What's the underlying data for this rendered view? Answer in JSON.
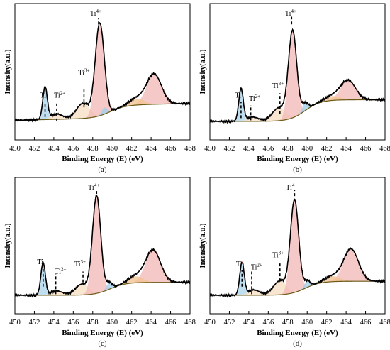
{
  "colors": {
    "measured": "#000000",
    "baseline": "#6b5a16",
    "envelope": "#d33b2c",
    "fill_ti0": "#a9d4ec",
    "fill_ti2": "#f7dfc1",
    "fill_ti3": "#f5dec0",
    "fill_ti4": "#f3b7b7",
    "fill_sat_ti0": "#9ccdea",
    "fill_sat_ti4": "#f1c28f",
    "marker": "#000000"
  },
  "chart_data": [
    {
      "type": "area",
      "panel_label": "(a)",
      "xlabel": "Binding Energy (E) (eV)",
      "ylabel": "Intensity(a.u.)",
      "xlim": [
        450,
        468
      ],
      "ylim": [
        0,
        1.02
      ],
      "x_ticks": [
        450,
        452,
        454,
        456,
        458,
        460,
        462,
        464,
        466,
        468
      ],
      "x_tick_labels": [
        "450",
        "452",
        "454",
        "456",
        "458",
        "460",
        "462",
        "464",
        "466",
        "468"
      ],
      "grid": false,
      "background": {
        "start": 0.03,
        "step_center": 459.8,
        "step_height": 0.12,
        "slope": 0.002
      },
      "peaks": [
        {
          "name": "Ti",
          "center": 453.1,
          "height": 0.3,
          "fwhm": 0.55,
          "fill": "fill_ti0"
        },
        {
          "name": "Ti2+",
          "center": 454.3,
          "height": 0.05,
          "fwhm": 1.4,
          "fill": "fill_ti2"
        },
        {
          "name": "Ti3+",
          "center": 457.0,
          "height": 0.14,
          "fwhm": 1.6,
          "fill": "fill_ti3"
        },
        {
          "name": "Ti4+",
          "center": 458.7,
          "height": 0.84,
          "fwhm": 1.05,
          "fill": "fill_ti4"
        },
        {
          "name": "Ti sat",
          "center": 459.2,
          "height": 0.06,
          "fwhm": 0.7,
          "fill": "fill_sat_ti0"
        },
        {
          "name": "Ti4+ 2p1/2",
          "center": 464.3,
          "height": 0.28,
          "fwhm": 1.8,
          "fill": "fill_ti4"
        },
        {
          "name": "Ti3+ 2p1/2",
          "center": 462.5,
          "height": 0.06,
          "fwhm": 1.8,
          "fill": "fill_sat_ti4"
        }
      ],
      "markers": [
        {
          "label": "Ti",
          "sup": "",
          "x": 453.1,
          "y_bottom": 0.06,
          "y_top": 0.2,
          "label_y": 0.24,
          "label_x": 452.9
        },
        {
          "label": "Ti",
          "sup": "2+",
          "x": 454.3,
          "y_bottom": 0.02,
          "y_top": 0.19,
          "label_y": 0.24,
          "label_x": 454.6
        },
        {
          "label": "Ti",
          "sup": "3+",
          "x": 457.1,
          "y_bottom": 0.15,
          "y_top": 0.33,
          "label_y": 0.45,
          "label_x": 457.1
        },
        {
          "label": "Ti",
          "sup": "4+",
          "x": 458.6,
          "y_bottom": 0.92,
          "y_top": 0.98,
          "label_y": 1.0,
          "label_x": 458.3
        }
      ]
    },
    {
      "type": "area",
      "panel_label": "(b)",
      "xlabel": "Binding Energy (E) (eV)",
      "ylabel": "Intensity(a.u.)",
      "xlim": [
        450,
        468
      ],
      "ylim": [
        0,
        1.02
      ],
      "x_ticks": [
        450,
        452,
        454,
        456,
        458,
        460,
        462,
        464,
        466,
        468
      ],
      "x_tick_labels": [
        "450",
        "452",
        "454",
        "456",
        "458",
        "460",
        "462",
        "464",
        "466",
        "468"
      ],
      "grid": false,
      "background": {
        "start": 0.02,
        "step_center": 459.8,
        "step_height": 0.2,
        "slope": 0.0
      },
      "peaks": [
        {
          "name": "Ti",
          "center": 453.2,
          "height": 0.3,
          "fwhm": 0.55,
          "fill": "fill_ti0"
        },
        {
          "name": "Ti2+",
          "center": 454.4,
          "height": 0.04,
          "fwhm": 1.4,
          "fill": "fill_ti2"
        },
        {
          "name": "Ti3+",
          "center": 457.1,
          "height": 0.12,
          "fwhm": 1.6,
          "fill": "fill_ti3"
        },
        {
          "name": "Ti4+",
          "center": 458.5,
          "height": 0.8,
          "fwhm": 1.0,
          "fill": "fill_ti4"
        },
        {
          "name": "Ti sat",
          "center": 459.8,
          "height": 0.07,
          "fwhm": 0.7,
          "fill": "fill_sat_ti0"
        },
        {
          "name": "Ti4+ 2p1/2",
          "center": 464.2,
          "height": 0.18,
          "fwhm": 1.8,
          "fill": "fill_ti4"
        },
        {
          "name": "Ti3+ 2p1/2",
          "center": 462.6,
          "height": 0.04,
          "fwhm": 1.8,
          "fill": "fill_sat_ti4"
        }
      ],
      "markers": [
        {
          "label": "Ti",
          "sup": "",
          "x": 453.2,
          "y_bottom": 0.05,
          "y_top": 0.2,
          "label_y": 0.24,
          "label_x": 452.9
        },
        {
          "label": "Ti",
          "sup": "2+",
          "x": 454.2,
          "y_bottom": 0.03,
          "y_top": 0.17,
          "label_y": 0.21,
          "label_x": 454.6
        },
        {
          "label": "Ti",
          "sup": "3+",
          "x": 457.2,
          "y_bottom": 0.09,
          "y_top": 0.28,
          "label_y": 0.33,
          "label_x": 457.0
        },
        {
          "label": "Ti",
          "sup": "4+",
          "x": 458.4,
          "y_bottom": 0.92,
          "y_top": 0.99,
          "label_y": 1.0,
          "label_x": 458.3
        }
      ]
    },
    {
      "type": "area",
      "panel_label": "(c)",
      "xlabel": "Binding Energy (E) (eV)",
      "ylabel": "Intensity(a.u.)",
      "xlim": [
        450,
        468
      ],
      "ylim": [
        0,
        1.02
      ],
      "x_ticks": [
        450,
        452,
        454,
        456,
        458,
        460,
        462,
        464,
        466,
        468
      ],
      "x_tick_labels": [
        "450",
        "452",
        "454",
        "456",
        "458",
        "460",
        "462",
        "464",
        "466",
        "468"
      ],
      "grid": false,
      "background": {
        "start": 0.02,
        "step_center": 459.8,
        "step_height": 0.12,
        "slope": 0.0
      },
      "peaks": [
        {
          "name": "Ti",
          "center": 452.9,
          "height": 0.3,
          "fwhm": 0.55,
          "fill": "fill_ti0"
        },
        {
          "name": "Ti2+",
          "center": 454.3,
          "height": 0.04,
          "fwhm": 1.4,
          "fill": "fill_ti2"
        },
        {
          "name": "Ti3+",
          "center": 456.9,
          "height": 0.1,
          "fwhm": 1.6,
          "fill": "fill_ti3"
        },
        {
          "name": "Ti4+",
          "center": 458.4,
          "height": 0.9,
          "fwhm": 1.0,
          "fill": "fill_ti4"
        },
        {
          "name": "Ti sat",
          "center": 459.7,
          "height": 0.06,
          "fwhm": 0.7,
          "fill": "fill_sat_ti0"
        },
        {
          "name": "Ti4+ 2p1/2",
          "center": 464.2,
          "height": 0.3,
          "fwhm": 1.8,
          "fill": "fill_ti4"
        },
        {
          "name": "Ti3+ 2p1/2",
          "center": 462.4,
          "height": 0.06,
          "fwhm": 1.8,
          "fill": "fill_sat_ti4"
        }
      ],
      "markers": [
        {
          "label": "Ti",
          "sup": "",
          "x": 452.9,
          "y_bottom": 0.1,
          "y_top": 0.27,
          "label_y": 0.31,
          "label_x": 452.6
        },
        {
          "label": "Ti",
          "sup": "2+",
          "x": 454.2,
          "y_bottom": 0.03,
          "y_top": 0.22,
          "label_y": 0.22,
          "label_x": 454.7
        },
        {
          "label": "Ti",
          "sup": "3+",
          "x": 457.0,
          "y_bottom": 0.14,
          "y_top": 0.24,
          "label_y": 0.29,
          "label_x": 456.7
        },
        {
          "label": "Ti",
          "sup": "4+",
          "x": 458.4,
          "y_bottom": 0.96,
          "y_top": 1.0,
          "label_y": 1.0,
          "label_x": 458.1
        }
      ]
    },
    {
      "type": "area",
      "panel_label": "(d)",
      "xlabel": "Binding Energy (E) (eV)",
      "ylabel": "Intensity(a.u.)",
      "xlim": [
        450,
        468
      ],
      "ylim": [
        0,
        1.02
      ],
      "x_ticks": [
        450,
        452,
        454,
        456,
        458,
        460,
        462,
        464,
        466,
        468
      ],
      "x_tick_labels": [
        "450",
        "452",
        "454",
        "456",
        "458",
        "460",
        "462",
        "464",
        "466",
        "468"
      ],
      "grid": false,
      "background": {
        "start": 0.02,
        "step_center": 459.8,
        "step_height": 0.13,
        "slope": 0.0
      },
      "peaks": [
        {
          "name": "Ti",
          "center": 453.3,
          "height": 0.3,
          "fwhm": 0.55,
          "fill": "fill_ti0"
        },
        {
          "name": "Ti2+",
          "center": 454.5,
          "height": 0.05,
          "fwhm": 1.4,
          "fill": "fill_ti2"
        },
        {
          "name": "Ti3+",
          "center": 457.2,
          "height": 0.13,
          "fwhm": 1.6,
          "fill": "fill_ti3"
        },
        {
          "name": "Ti4+",
          "center": 458.7,
          "height": 0.85,
          "fwhm": 1.0,
          "fill": "fill_ti4"
        },
        {
          "name": "Ti sat",
          "center": 460.0,
          "height": 0.06,
          "fwhm": 0.7,
          "fill": "fill_sat_ti0"
        },
        {
          "name": "Ti4+ 2p1/2",
          "center": 464.5,
          "height": 0.3,
          "fwhm": 1.8,
          "fill": "fill_ti4"
        },
        {
          "name": "Ti3+ 2p1/2",
          "center": 462.6,
          "height": 0.05,
          "fwhm": 1.8,
          "fill": "fill_sat_ti4"
        }
      ],
      "markers": [
        {
          "label": "Ti",
          "sup": "",
          "x": 453.3,
          "y_bottom": 0.1,
          "y_top": 0.25,
          "label_y": 0.29,
          "label_x": 453.0
        },
        {
          "label": "Ti",
          "sup": "2+",
          "x": 454.3,
          "y_bottom": 0.03,
          "y_top": 0.24,
          "label_y": 0.26,
          "label_x": 454.8
        },
        {
          "label": "Ti",
          "sup": "3+",
          "x": 457.2,
          "y_bottom": 0.15,
          "y_top": 0.33,
          "label_y": 0.37,
          "label_x": 457.0
        },
        {
          "label": "Ti",
          "sup": "4+",
          "x": 458.7,
          "y_bottom": 0.94,
          "y_top": 1.0,
          "label_y": 1.0,
          "label_x": 458.4
        }
      ]
    }
  ]
}
